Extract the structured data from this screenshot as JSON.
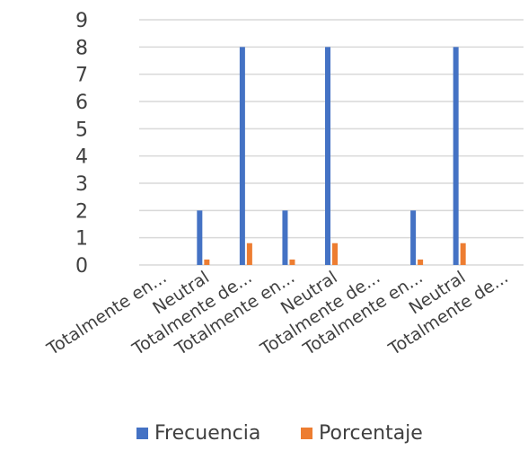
{
  "chart_data": {
    "type": "bar",
    "categories": [
      "Totalmente en...",
      "Neutral",
      "Totalmente de...",
      "Totalmente en...",
      "Neutral",
      "Totalmente de...",
      "Totalmente en...",
      "Neutral",
      "Totalmente de..."
    ],
    "series": [
      {
        "name": "Frecuencia",
        "color": "#4472c4",
        "values": [
          0,
          2,
          8,
          2,
          8,
          0,
          2,
          8,
          0
        ]
      },
      {
        "name": "Porcentaje",
        "color": "#ed7d31",
        "values": [
          0,
          0.2,
          0.8,
          0.2,
          0.8,
          0,
          0.2,
          0.8,
          0
        ]
      }
    ],
    "ylim": [
      0,
      9
    ],
    "yticks": [
      "0",
      "1",
      "2",
      "3",
      "4",
      "5",
      "6",
      "7",
      "8",
      "9"
    ],
    "grid": true,
    "legend": "bottom"
  }
}
